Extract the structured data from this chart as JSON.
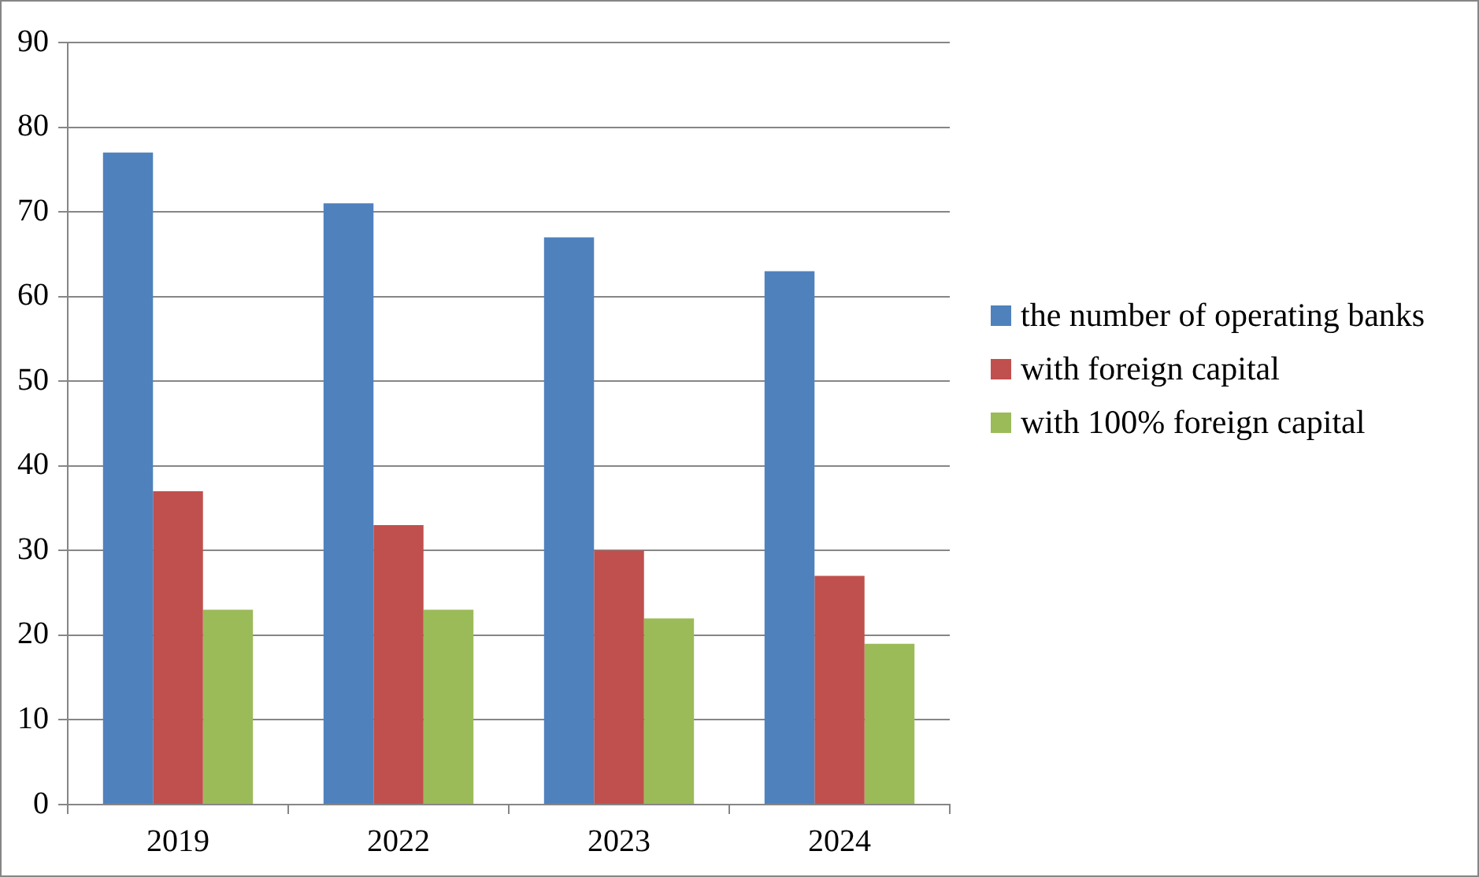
{
  "chart_data": {
    "type": "bar",
    "categories": [
      "2019",
      "2022",
      "2023",
      "2024"
    ],
    "series": [
      {
        "name": "the number of operating banks",
        "color": "#4f81bd",
        "values": [
          77,
          71,
          67,
          63
        ]
      },
      {
        "name": "with foreign capital",
        "color": "#c0504d",
        "values": [
          37,
          33,
          30,
          27
        ]
      },
      {
        "name": "with 100% foreign capital",
        "color": "#9bbb59",
        "values": [
          23,
          23,
          22,
          19
        ]
      }
    ],
    "ylim": [
      0,
      90
    ],
    "yticks": [
      0,
      10,
      20,
      30,
      40,
      50,
      60,
      70,
      80,
      90
    ],
    "grid": "y",
    "legend": "right"
  }
}
